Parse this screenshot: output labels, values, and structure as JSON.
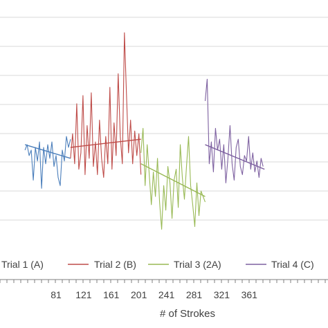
{
  "chart_data": {
    "type": "line",
    "title": "",
    "xlabel": "# of Strokes",
    "ylabel": "",
    "grid": true,
    "legend_position": "bottom",
    "x_ticks": [
      81,
      121,
      161,
      201,
      241,
      281,
      321,
      361
    ],
    "xlim": [
      36,
      383
    ],
    "ylim": [
      0,
      9
    ],
    "series": [
      {
        "name": "Trial 1 (A)",
        "color": "#4a7ebb",
        "x": [
          36,
          39,
          42,
          45,
          48,
          51,
          54,
          57,
          60,
          63,
          66,
          69,
          72,
          75,
          78,
          81,
          84,
          87,
          90,
          93,
          96,
          99,
          102
        ],
        "y": [
          3.5,
          3.7,
          3.3,
          3.5,
          2.4,
          3.6,
          3.1,
          3.8,
          2.1,
          3.6,
          3.0,
          3.7,
          3.2,
          3.8,
          2.9,
          3.3,
          2.5,
          2.2,
          3.5,
          3.1,
          4.0,
          3.6,
          3.9
        ],
        "trend": [
          [
            36,
            3.7
          ],
          [
            102,
            3.2
          ]
        ]
      },
      {
        "name": "Trial 2 (B)",
        "color": "#be4b48",
        "x": [
          102,
          105,
          108,
          111,
          114,
          117,
          120,
          123,
          126,
          129,
          132,
          135,
          138,
          141,
          144,
          147,
          150,
          153,
          156,
          159,
          162,
          165,
          168,
          171,
          174,
          177,
          180,
          183,
          186,
          189,
          192,
          195,
          198,
          201,
          204
        ],
        "y": [
          3.2,
          4.1,
          3.0,
          5.2,
          2.8,
          3.4,
          5.5,
          2.6,
          4.4,
          3.2,
          5.6,
          2.9,
          3.8,
          2.6,
          4.6,
          3.2,
          2.5,
          4.0,
          3.0,
          5.8,
          2.8,
          4.5,
          3.3,
          6.3,
          4.0,
          3.0,
          7.8,
          5.6,
          3.4,
          4.6,
          3.0,
          4.2,
          3.3,
          4.1,
          2.6
        ],
        "trend": [
          [
            102,
            3.6
          ],
          [
            204,
            3.9
          ]
        ]
      },
      {
        "name": "Trial 3 (2A)",
        "color": "#98b954",
        "x": [
          204,
          207,
          210,
          213,
          216,
          219,
          222,
          225,
          228,
          231,
          234,
          237,
          240,
          243,
          246,
          249,
          252,
          255,
          258,
          261,
          264,
          267,
          270,
          273,
          276,
          279,
          282,
          285,
          288,
          291,
          294,
          297
        ],
        "y": [
          3.4,
          4.3,
          2.2,
          3.7,
          2.6,
          1.5,
          2.7,
          1.8,
          3.2,
          1.6,
          0.6,
          2.2,
          1.3,
          2.9,
          2.3,
          1.0,
          2.4,
          2.8,
          1.4,
          3.7,
          2.5,
          1.7,
          2.9,
          4.0,
          2.2,
          1.5,
          0.7,
          2.3,
          1.1,
          2.0,
          1.8,
          1.6
        ],
        "trend": [
          [
            204,
            3.0
          ],
          [
            297,
            1.8
          ]
        ]
      },
      {
        "name": "Trial 4 (C)",
        "color": "#7d60a0",
        "x": [
          297,
          300,
          303,
          306,
          309,
          312,
          315,
          318,
          321,
          324,
          327,
          330,
          333,
          336,
          339,
          342,
          345,
          348,
          351,
          354,
          357,
          360,
          363,
          366,
          369,
          372,
          375,
          378,
          381
        ],
        "y": [
          5.3,
          6.1,
          3.0,
          3.8,
          2.7,
          4.3,
          3.5,
          3.9,
          2.8,
          3.7,
          2.3,
          3.2,
          4.4,
          3.0,
          2.4,
          3.6,
          3.9,
          2.9,
          2.6,
          3.3,
          3.1,
          4.0,
          2.8,
          3.4,
          2.7,
          3.1,
          2.5,
          3.2,
          2.9
        ],
        "trend": [
          [
            297,
            3.7
          ],
          [
            383,
            2.8
          ]
        ]
      }
    ]
  }
}
